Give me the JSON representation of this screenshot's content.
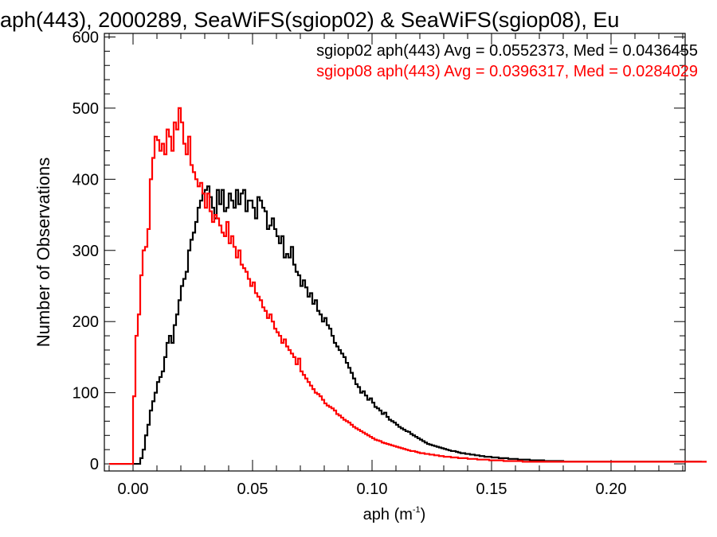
{
  "chart_data": {
    "type": "histogram",
    "title": "aph(443), 2000289, SeaWiFS(sgiop02) & SeaWiFS(sgiop08), Eu",
    "xlabel": "aph (m",
    "xlabel_sup": "-1",
    "xlabel_close": ")",
    "ylabel": "Number of Observations",
    "xlim": [
      -0.012,
      0.231
    ],
    "ylim": [
      -10,
      605
    ],
    "x_ticks": [
      0.0,
      0.05,
      0.1,
      0.15,
      0.2
    ],
    "x_tick_labels": [
      "0.00",
      "0.05",
      "0.10",
      "0.15",
      "0.20"
    ],
    "y_ticks": [
      0,
      100,
      200,
      300,
      400,
      500,
      600
    ],
    "y_tick_labels": [
      "0",
      "100",
      "200",
      "300",
      "400",
      "500",
      "600"
    ],
    "grid": false,
    "legend_position": "top-right",
    "bin_width": 0.001,
    "series": [
      {
        "label": "sgiop02 aph(443) Avg = 0.0552373, Med = 0.0436455",
        "color": "#000000",
        "x_start": -0.01,
        "counts": [
          0,
          0,
          0,
          0,
          0,
          0,
          0,
          0,
          0,
          0,
          0,
          0,
          0,
          8,
          20,
          40,
          55,
          75,
          88,
          100,
          115,
          122,
          130,
          150,
          170,
          180,
          170,
          195,
          210,
          230,
          250,
          260,
          270,
          300,
          315,
          325,
          340,
          360,
          370,
          380,
          385,
          390,
          375,
          360,
          345,
          385,
          365,
          385,
          355,
          360,
          380,
          370,
          360,
          385,
          365,
          380,
          385,
          355,
          370,
          370,
          360,
          345,
          375,
          370,
          360,
          355,
          330,
          335,
          345,
          330,
          320,
          310,
          320,
          290,
          295,
          290,
          305,
          280,
          270,
          265,
          250,
          258,
          248,
          235,
          240,
          225,
          230,
          215,
          210,
          200,
          205,
          195,
          190,
          180,
          170,
          165,
          160,
          155,
          150,
          142,
          135,
          128,
          120,
          112,
          108,
          100,
          102,
          96,
          90,
          92,
          86,
          80,
          78,
          75,
          70,
          72,
          66,
          62,
          60,
          58,
          55,
          52,
          50,
          48,
          46,
          45,
          42,
          40,
          38,
          36,
          34,
          32,
          30,
          28,
          27,
          26,
          25,
          24,
          23,
          22,
          21,
          20,
          19,
          18,
          18,
          17,
          16,
          15,
          15,
          14,
          14,
          13,
          13,
          12,
          12,
          11,
          11,
          10,
          10,
          10,
          9,
          9,
          9,
          8,
          8,
          8,
          8,
          7,
          7,
          7,
          7,
          6,
          6,
          6,
          6,
          6,
          5,
          5,
          5,
          5,
          5,
          5,
          4,
          4,
          4,
          4,
          4,
          4,
          4,
          4,
          3,
          3,
          3,
          3,
          3,
          3,
          3,
          3,
          3,
          3,
          3,
          3,
          3,
          3,
          3,
          3,
          3,
          3,
          3,
          3,
          3,
          3,
          3,
          3,
          3,
          3,
          3,
          3,
          3,
          3,
          3,
          3,
          3,
          3,
          3,
          3,
          3,
          3,
          3,
          3,
          3,
          3,
          3,
          3,
          3,
          3,
          3,
          3,
          3,
          3,
          3,
          3,
          3,
          3,
          3,
          3,
          3,
          3
        ]
      },
      {
        "label": "sgiop08 aph(443) Avg = 0.0396317, Med = 0.0284029",
        "color": "#ff0000",
        "x_start": -0.01,
        "counts": [
          0,
          0,
          0,
          0,
          0,
          0,
          0,
          0,
          0,
          0,
          95,
          180,
          210,
          265,
          300,
          305,
          330,
          400,
          430,
          460,
          455,
          440,
          450,
          435,
          470,
          460,
          440,
          480,
          470,
          500,
          480,
          450,
          435,
          460,
          420,
          410,
          400,
          390,
          395,
          380,
          360,
          380,
          355,
          340,
          350,
          345,
          335,
          325,
          320,
          340,
          310,
          320,
          305,
          290,
          300,
          280,
          275,
          270,
          260,
          250,
          255,
          240,
          235,
          230,
          220,
          215,
          205,
          210,
          200,
          190,
          185,
          180,
          170,
          175,
          165,
          160,
          155,
          150,
          140,
          148,
          130,
          125,
          120,
          115,
          110,
          105,
          100,
          98,
          95,
          90,
          85,
          82,
          80,
          78,
          75,
          70,
          68,
          65,
          62,
          60,
          58,
          55,
          52,
          50,
          48,
          46,
          44,
          42,
          40,
          38,
          36,
          34,
          33,
          32,
          30,
          29,
          28,
          27,
          26,
          25,
          24,
          23,
          22,
          21,
          20,
          19,
          18,
          18,
          17,
          16,
          15,
          15,
          14,
          14,
          13,
          13,
          12,
          12,
          11,
          11,
          10,
          10,
          10,
          9,
          9,
          9,
          8,
          8,
          8,
          8,
          7,
          7,
          7,
          7,
          6,
          6,
          6,
          6,
          6,
          5,
          5,
          5,
          5,
          5,
          5,
          4,
          4,
          4,
          4,
          4,
          4,
          4,
          4,
          3,
          3,
          3,
          3,
          3,
          3,
          3,
          3,
          3,
          3,
          3,
          3,
          3,
          3,
          3,
          3,
          3,
          3,
          3,
          3,
          3,
          3,
          3,
          3,
          3,
          3,
          3,
          3,
          3,
          3,
          3,
          3,
          3,
          3,
          3,
          3,
          3,
          3,
          3,
          3,
          3,
          3,
          3,
          3,
          3,
          3,
          3,
          3,
          3,
          3,
          3,
          3,
          3,
          3,
          3,
          3,
          3,
          3,
          3,
          3,
          3,
          3,
          3,
          3,
          3,
          3,
          3,
          3,
          3,
          3,
          3,
          3,
          3,
          3,
          3,
          3,
          3
        ]
      }
    ]
  }
}
